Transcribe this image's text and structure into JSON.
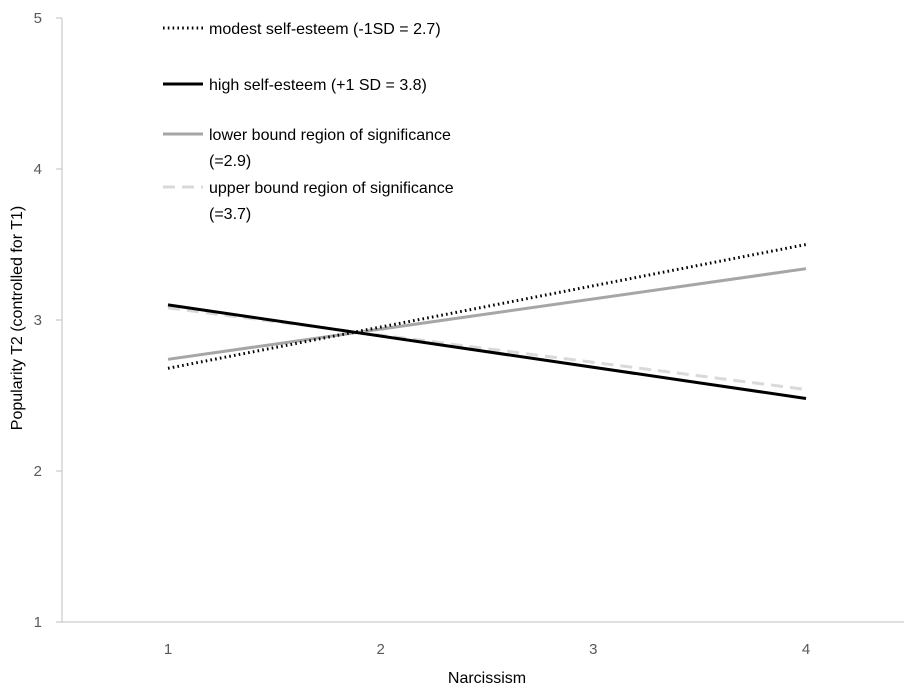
{
  "chart_data": {
    "type": "line",
    "title": "",
    "xlabel": "Narcissism",
    "ylabel": "Popularity T2 (controlled for T1)",
    "xlim": [
      0.5,
      5.0
    ],
    "ylim": [
      1,
      5
    ],
    "x_ticks": [
      "1",
      "2",
      "3",
      "4"
    ],
    "y_ticks": [
      "1",
      "2",
      "3",
      "4",
      "5"
    ],
    "grid": false,
    "legend_position": "top-left",
    "series": [
      {
        "name": "modest self-esteem (-1SD = 2.7)",
        "x": [
          1,
          4
        ],
        "y": [
          2.68,
          3.5
        ],
        "color": "#000000",
        "style": "dotted"
      },
      {
        "name": "high self-esteem (+1 SD = 3.8)",
        "x": [
          1,
          4
        ],
        "y": [
          3.1,
          2.48
        ],
        "color": "#000000",
        "style": "solid"
      },
      {
        "name": "lower bound region of significance",
        "name_line2": "(=2.9)",
        "x": [
          1,
          4
        ],
        "y": [
          2.74,
          3.34
        ],
        "color": "#a6a6a6",
        "style": "solid"
      },
      {
        "name": "upper bound region of significance",
        "name_line2": "(=3.7)",
        "x": [
          1,
          4
        ],
        "y": [
          3.08,
          2.54
        ],
        "color": "#d9d9d9",
        "style": "dashed"
      }
    ]
  }
}
